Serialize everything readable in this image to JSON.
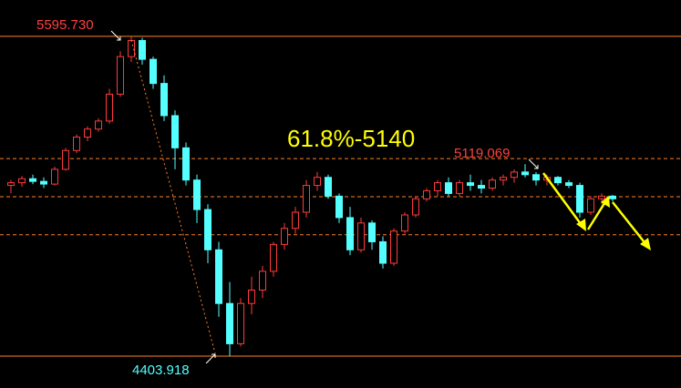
{
  "chart_data": {
    "type": "candlestick",
    "annotations": {
      "high": "5595.730",
      "low": "4403.918",
      "swing": "5119.069",
      "target": "61.8%-5140"
    },
    "ylim": [
      4285,
      5731
    ],
    "up_color": "#ff3b3b",
    "down_color": "#54ffff",
    "level_color": "#ff7f27",
    "levels": [
      {
        "value": 5595.73,
        "style": "solid"
      },
      {
        "value": 5140,
        "style": "dashed"
      },
      {
        "value": 4998,
        "style": "dashed"
      },
      {
        "value": 4856,
        "style": "dashed"
      },
      {
        "value": 4403.918,
        "style": "solid"
      }
    ],
    "candles": [
      [
        5040,
        5060,
        5010,
        5050
      ],
      [
        5050,
        5075,
        5035,
        5065
      ],
      [
        5065,
        5080,
        5045,
        5055
      ],
      [
        5055,
        5070,
        5030,
        5045
      ],
      [
        5045,
        5110,
        5040,
        5100
      ],
      [
        5100,
        5180,
        5095,
        5170
      ],
      [
        5170,
        5230,
        5160,
        5220
      ],
      [
        5220,
        5260,
        5205,
        5250
      ],
      [
        5250,
        5290,
        5240,
        5280
      ],
      [
        5280,
        5400,
        5270,
        5380
      ],
      [
        5380,
        5540,
        5370,
        5520
      ],
      [
        5520,
        5595.73,
        5500,
        5580
      ],
      [
        5580,
        5590,
        5490,
        5510
      ],
      [
        5510,
        5520,
        5400,
        5420
      ],
      [
        5420,
        5450,
        5280,
        5300
      ],
      [
        5300,
        5320,
        5100,
        5180
      ],
      [
        5180,
        5200,
        5040,
        5060
      ],
      [
        5060,
        5080,
        4900,
        4950
      ],
      [
        4950,
        4970,
        4750,
        4800
      ],
      [
        4800,
        4830,
        4550,
        4600
      ],
      [
        4600,
        4680,
        4403.918,
        4450
      ],
      [
        4450,
        4620,
        4440,
        4600
      ],
      [
        4600,
        4700,
        4560,
        4650
      ],
      [
        4650,
        4740,
        4620,
        4720
      ],
      [
        4720,
        4830,
        4700,
        4820
      ],
      [
        4820,
        4900,
        4800,
        4880
      ],
      [
        4880,
        4960,
        4860,
        4940
      ],
      [
        4940,
        5060,
        4920,
        5040
      ],
      [
        5040,
        5090,
        5020,
        5070
      ],
      [
        5070,
        5080,
        4990,
        5000
      ],
      [
        5000,
        5010,
        4900,
        4920
      ],
      [
        4920,
        4960,
        4780,
        4800
      ],
      [
        4800,
        4920,
        4790,
        4900
      ],
      [
        4900,
        4910,
        4800,
        4830
      ],
      [
        4830,
        4850,
        4730,
        4750
      ],
      [
        4750,
        4880,
        4740,
        4870
      ],
      [
        4870,
        4940,
        4860,
        4930
      ],
      [
        4930,
        5000,
        4920,
        4990
      ],
      [
        4990,
        5030,
        4980,
        5020
      ],
      [
        5020,
        5060,
        5000,
        5050
      ],
      [
        5050,
        5070,
        5000,
        5010
      ],
      [
        5010,
        5060,
        5000,
        5050
      ],
      [
        5050,
        5080,
        5020,
        5040
      ],
      [
        5040,
        5060,
        5010,
        5030
      ],
      [
        5030,
        5070,
        5020,
        5060
      ],
      [
        5060,
        5080,
        5040,
        5070
      ],
      [
        5070,
        5100,
        5050,
        5090
      ],
      [
        5090,
        5119.069,
        5070,
        5080
      ],
      [
        5080,
        5090,
        5040,
        5060
      ],
      [
        5060,
        5080,
        5040,
        5070
      ],
      [
        5070,
        5075,
        5040,
        5050
      ],
      [
        5050,
        5060,
        5030,
        5040
      ],
      [
        5040,
        5050,
        4920,
        4940
      ],
      [
        4940,
        5000,
        4930,
        4990
      ],
      [
        4990,
        5010,
        4970,
        5000
      ],
      [
        5000,
        5005,
        4980,
        4990
      ]
    ]
  }
}
